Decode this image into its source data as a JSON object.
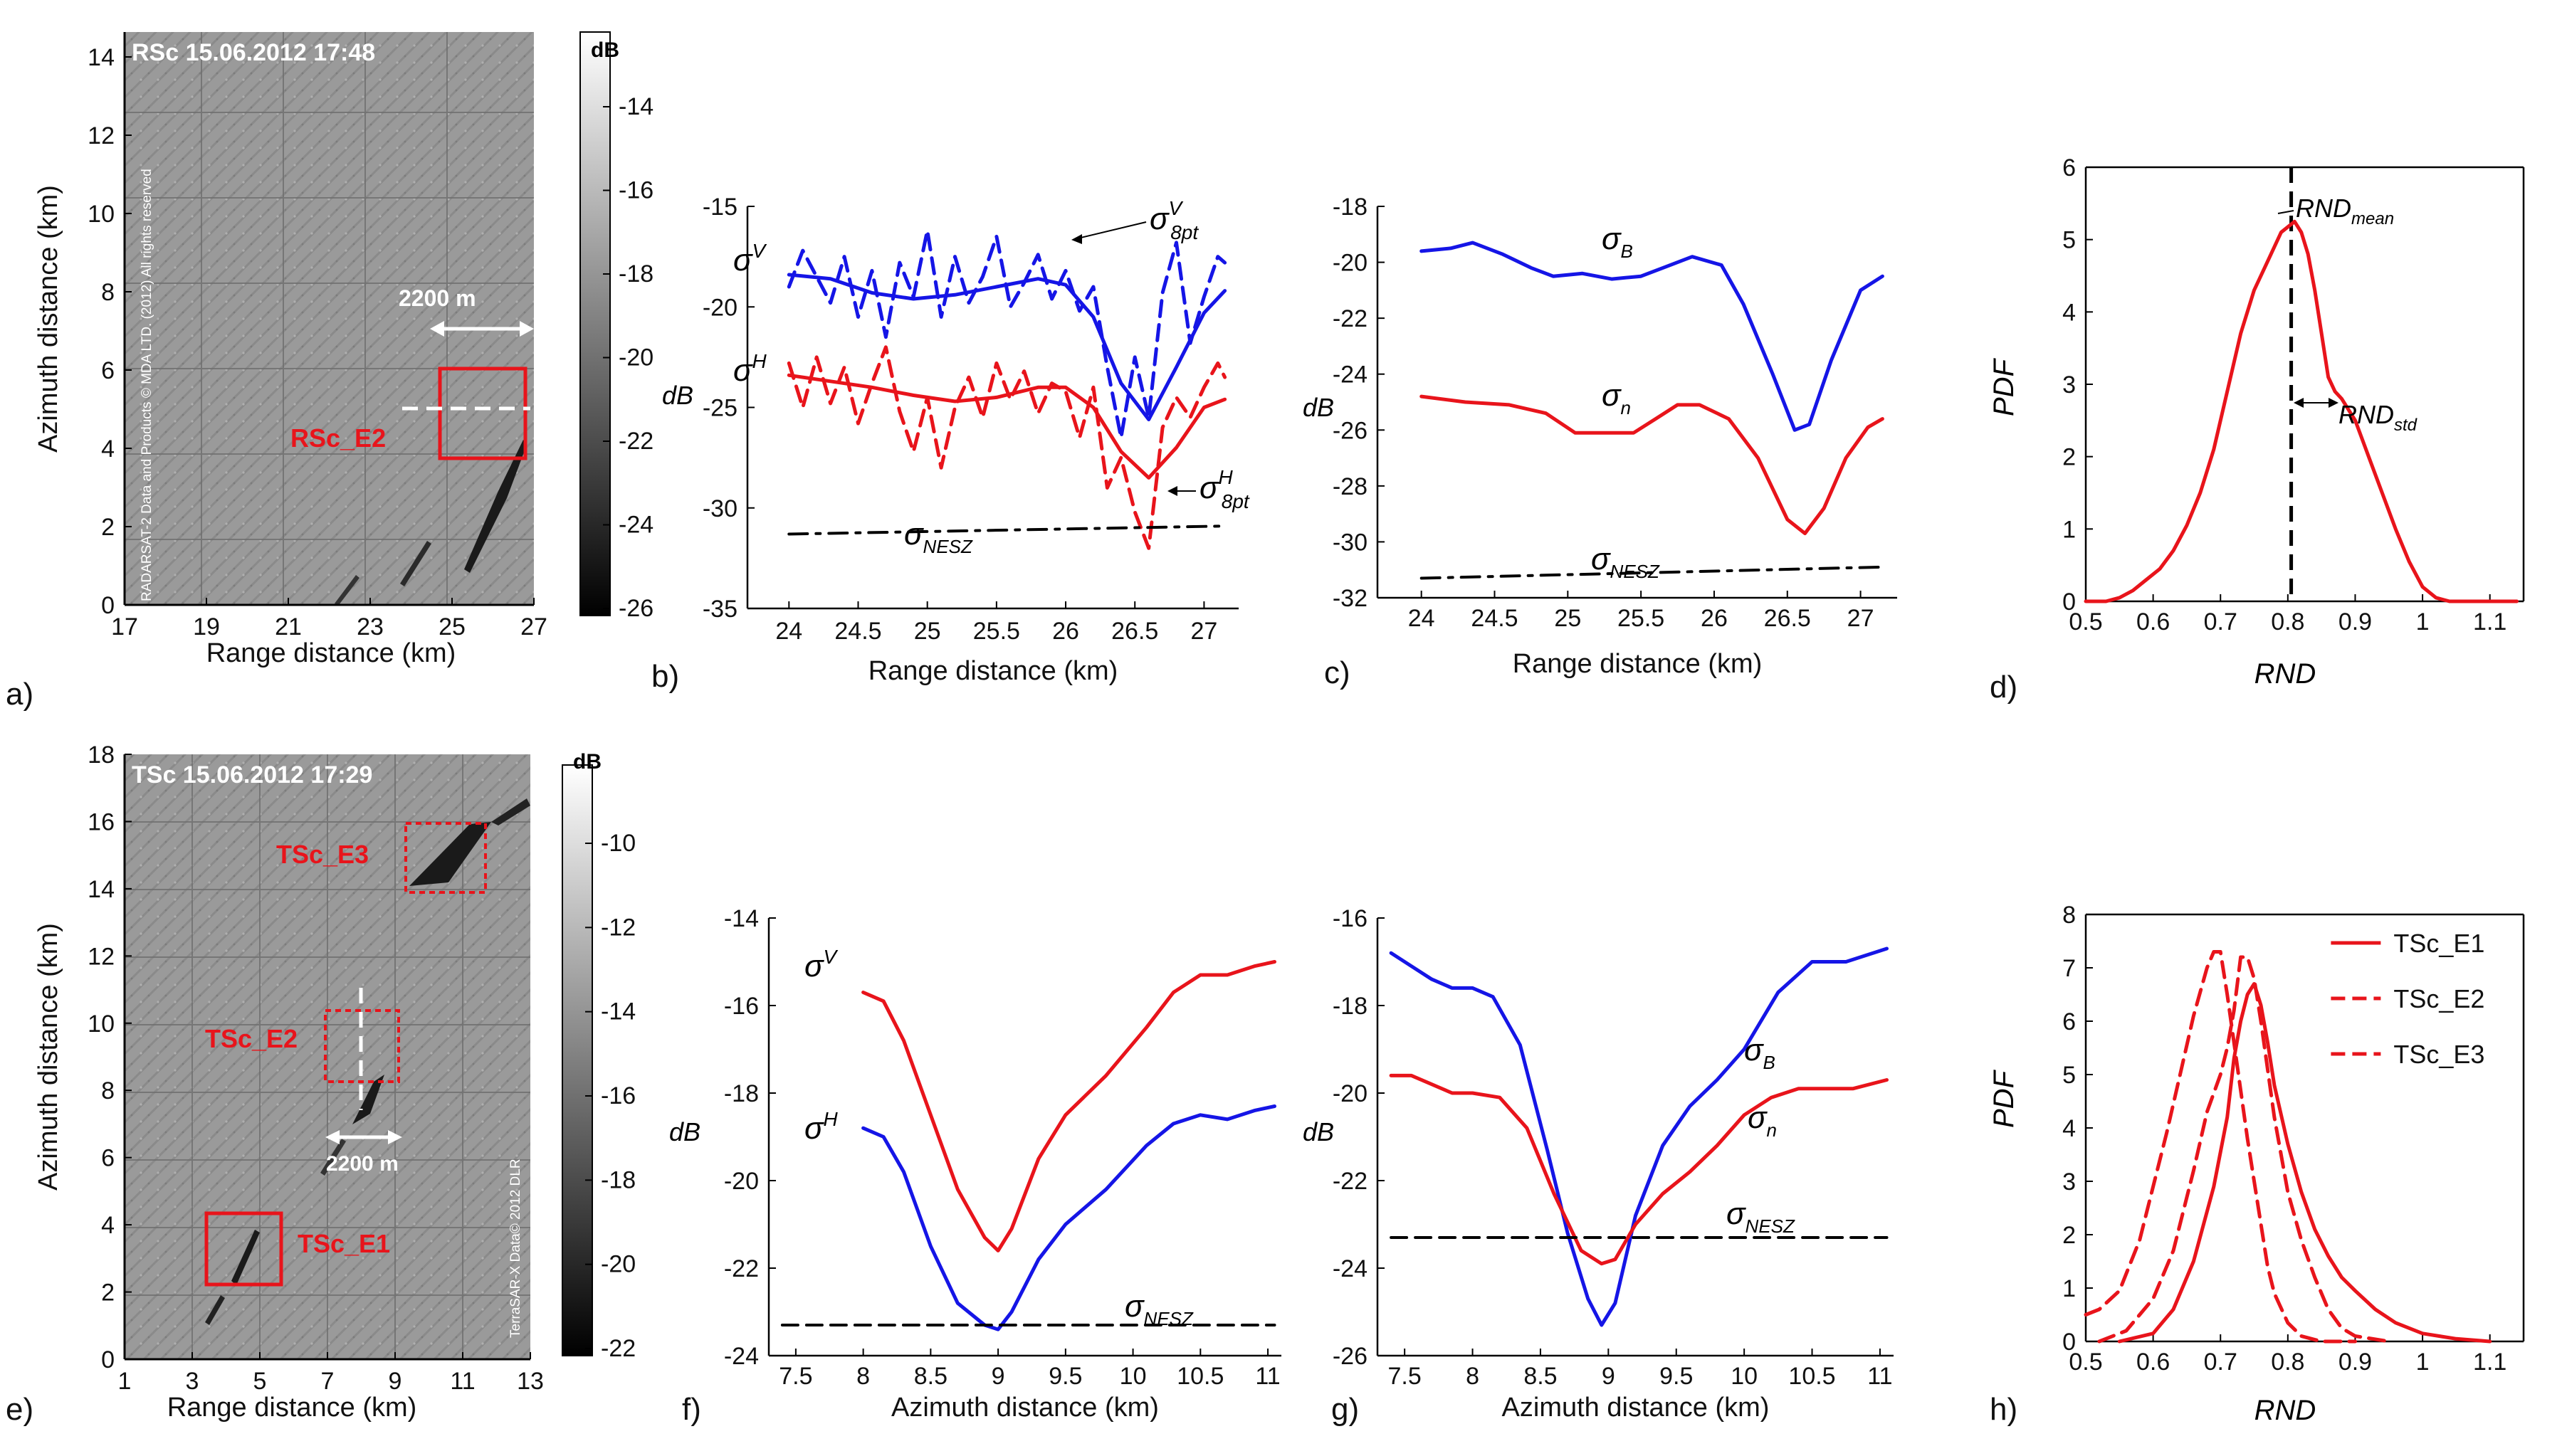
{
  "colors": {
    "red": "#e8141b",
    "blue": "#1515e6",
    "black": "#000000",
    "white": "#ffffff"
  },
  "panel_labels": [
    "a)",
    "b)",
    "c)",
    "d)",
    "e)",
    "f)",
    "g)",
    "h)"
  ],
  "images": [
    {
      "id": "a",
      "header": "RSc  15.06.2012  17:48",
      "xlabel": "Range distance (km)",
      "ylabel": "Azimuth distance (km)",
      "xticks": [
        "17",
        "19",
        "21",
        "23",
        "25",
        "27"
      ],
      "yticks": [
        "0",
        "2",
        "4",
        "6",
        "8",
        "10",
        "12",
        "14"
      ],
      "colorbar_unit": "dB",
      "colorbar_ticks": [
        "-14",
        "-16",
        "-18",
        "-20",
        "-22",
        "-24",
        "-26"
      ],
      "box_labels": [
        "RSc_E2"
      ],
      "distance_label": "2200 m",
      "copyright": "RADARSAT-2 Data and Products © MDA LTD. (2012) All rights reserved"
    },
    {
      "id": "e",
      "header": "TSc  15.06.2012  17:29",
      "xlabel": "Range distance (km)",
      "ylabel": "Azimuth distance (km)",
      "xticks": [
        "1",
        "3",
        "5",
        "7",
        "9",
        "11",
        "13"
      ],
      "yticks": [
        "0",
        "2",
        "4",
        "6",
        "8",
        "10",
        "12",
        "14",
        "16",
        "18"
      ],
      "colorbar_unit": "dB",
      "colorbar_ticks": [
        "-10",
        "-12",
        "-14",
        "-16",
        "-18",
        "-20",
        "-22"
      ],
      "box_labels": [
        "TSc_E3",
        "TSc_E2",
        "TSc_E1"
      ],
      "distance_label": "2200 m",
      "copyright": "TerraSAR-X Data© 2012 DLR"
    }
  ],
  "chart_data": [
    {
      "panel": "b",
      "type": "line",
      "xlabel": "Range distance (km)",
      "ylabel": "dB",
      "xlim": [
        23.7,
        27.25
      ],
      "ylim": [
        -35,
        -15
      ],
      "xticks": [
        "24",
        "24.5",
        "25",
        "25.5",
        "26",
        "26.5",
        "27"
      ],
      "yticks": [
        "-15",
        "-20",
        "-25",
        "-30",
        "-35"
      ],
      "annotations": [
        "σ^V",
        "σ^H",
        "σ^V_8pt",
        "σ^H_8pt",
        "σ_NESZ"
      ],
      "series": [
        {
          "name": "σ^V",
          "style": "solid",
          "color": "#1515e6",
          "x": [
            24.0,
            24.3,
            24.6,
            24.9,
            25.2,
            25.5,
            25.8,
            26.0,
            26.2,
            26.4,
            26.6,
            26.8,
            27.0,
            27.15
          ],
          "y": [
            -18.4,
            -18.6,
            -19.3,
            -19.6,
            -19.4,
            -19.0,
            -18.6,
            -18.9,
            -20.5,
            -23.8,
            -25.6,
            -23.0,
            -20.3,
            -19.2
          ]
        },
        {
          "name": "σ^V_8pt",
          "style": "dashed",
          "color": "#1515e6",
          "x": [
            24.0,
            24.1,
            24.2,
            24.3,
            24.4,
            24.5,
            24.6,
            24.7,
            24.8,
            24.9,
            25.0,
            25.1,
            25.2,
            25.3,
            25.4,
            25.5,
            25.6,
            25.7,
            25.8,
            25.9,
            26.0,
            26.1,
            26.2,
            26.3,
            26.4,
            26.5,
            26.6,
            26.7,
            26.8,
            26.9,
            27.0,
            27.1,
            27.15
          ],
          "y": [
            -19,
            -17.2,
            -18.5,
            -19.8,
            -17.5,
            -20.5,
            -18.2,
            -21.5,
            -17.8,
            -19.5,
            -16.2,
            -20.5,
            -17.5,
            -19.8,
            -18.5,
            -16.5,
            -20.0,
            -18.8,
            -17.4,
            -19.6,
            -18.2,
            -20.2,
            -19.0,
            -23.0,
            -26.5,
            -22.5,
            -25.5,
            -19.3,
            -16.8,
            -21.8,
            -19.5,
            -17.5,
            -17.8
          ]
        },
        {
          "name": "σ^H",
          "style": "solid",
          "color": "#e8141b",
          "x": [
            24.0,
            24.3,
            24.6,
            24.9,
            25.2,
            25.5,
            25.8,
            26.0,
            26.2,
            26.4,
            26.6,
            26.8,
            27.0,
            27.15
          ],
          "y": [
            -23.4,
            -23.7,
            -24.0,
            -24.4,
            -24.7,
            -24.5,
            -24.0,
            -24.0,
            -25.0,
            -27.2,
            -28.5,
            -27.0,
            -25.0,
            -24.6
          ]
        },
        {
          "name": "σ^H_8pt",
          "style": "dashed",
          "color": "#e8141b",
          "x": [
            24.0,
            24.1,
            24.2,
            24.3,
            24.4,
            24.5,
            24.6,
            24.7,
            24.8,
            24.9,
            25.0,
            25.1,
            25.2,
            25.3,
            25.4,
            25.5,
            25.6,
            25.7,
            25.8,
            25.9,
            26.0,
            26.1,
            26.2,
            26.3,
            26.4,
            26.5,
            26.6,
            26.7,
            26.8,
            26.9,
            27.0,
            27.1,
            27.15
          ],
          "y": [
            -22.8,
            -25.0,
            -22.5,
            -24.8,
            -23.0,
            -25.8,
            -23.8,
            -22.0,
            -25.2,
            -27.2,
            -24.5,
            -28.0,
            -25.0,
            -23.5,
            -25.5,
            -22.8,
            -24.6,
            -23.2,
            -25.3,
            -23.8,
            -24.2,
            -26.5,
            -24.0,
            -29.0,
            -27.5,
            -30.2,
            -32.0,
            -26.0,
            -24.5,
            -25.5,
            -24.0,
            -22.8,
            -23.5
          ]
        },
        {
          "name": "σ_NESZ",
          "style": "dashdot",
          "color": "#000000",
          "x": [
            24.0,
            27.15
          ],
          "y": [
            -31.3,
            -30.9
          ]
        }
      ]
    },
    {
      "panel": "c",
      "type": "line",
      "xlabel": "Range distance (km)",
      "ylabel": "dB",
      "xlim": [
        23.7,
        27.25
      ],
      "ylim": [
        -32,
        -18
      ],
      "xticks": [
        "24",
        "24.5",
        "25",
        "25.5",
        "26",
        "26.5",
        "27"
      ],
      "yticks": [
        "-18",
        "-20",
        "-22",
        "-24",
        "-26",
        "-28",
        "-30",
        "-32"
      ],
      "annotations": [
        "σ_B",
        "σ_n",
        "σ_NESZ"
      ],
      "series": [
        {
          "name": "σ_B",
          "style": "solid",
          "color": "#1515e6",
          "x": [
            24.0,
            24.2,
            24.35,
            24.55,
            24.75,
            24.9,
            25.1,
            25.3,
            25.5,
            25.65,
            25.85,
            26.05,
            26.2,
            26.4,
            26.55,
            26.65,
            26.8,
            27.0,
            27.15
          ],
          "y": [
            -19.6,
            -19.5,
            -19.3,
            -19.7,
            -20.2,
            -20.5,
            -20.4,
            -20.6,
            -20.5,
            -20.2,
            -19.8,
            -20.1,
            -21.5,
            -24.0,
            -26.0,
            -25.8,
            -23.5,
            -21.0,
            -20.5
          ]
        },
        {
          "name": "σ_n",
          "style": "solid",
          "color": "#e8141b",
          "x": [
            24.0,
            24.3,
            24.6,
            24.85,
            25.05,
            25.25,
            25.45,
            25.6,
            25.75,
            25.9,
            26.1,
            26.3,
            26.5,
            26.62,
            26.75,
            26.9,
            27.05,
            27.15
          ],
          "y": [
            -24.8,
            -25.0,
            -25.1,
            -25.4,
            -26.1,
            -26.1,
            -26.1,
            -25.6,
            -25.1,
            -25.1,
            -25.6,
            -27.0,
            -29.2,
            -29.7,
            -28.8,
            -27.0,
            -25.9,
            -25.6
          ]
        },
        {
          "name": "σ_NESZ",
          "style": "dashdot",
          "color": "#000000",
          "x": [
            24.0,
            27.15
          ],
          "y": [
            -31.3,
            -30.9
          ]
        }
      ]
    },
    {
      "panel": "d",
      "type": "line",
      "xlabel": "RND",
      "ylabel": "PDF",
      "xlim": [
        0.5,
        1.15
      ],
      "ylim": [
        0,
        6
      ],
      "xticks": [
        "0.5",
        "0.6",
        "0.7",
        "0.8",
        "0.9",
        "1",
        "1.1"
      ],
      "yticks": [
        "0",
        "1",
        "2",
        "3",
        "4",
        "5",
        "6"
      ],
      "annotations": [
        "RND_mean",
        "RND_std"
      ],
      "vline": {
        "x": 0.805,
        "style": "dashed"
      },
      "series": [
        {
          "name": "",
          "style": "solid",
          "color": "#e8141b",
          "x": [
            0.5,
            0.53,
            0.55,
            0.57,
            0.59,
            0.61,
            0.63,
            0.65,
            0.67,
            0.69,
            0.71,
            0.73,
            0.75,
            0.77,
            0.79,
            0.81,
            0.82,
            0.83,
            0.84,
            0.85,
            0.86,
            0.87,
            0.88,
            0.9,
            0.92,
            0.94,
            0.96,
            0.98,
            1.0,
            1.02,
            1.04,
            1.07,
            1.1,
            1.14
          ],
          "y": [
            0,
            0,
            0.05,
            0.15,
            0.3,
            0.45,
            0.7,
            1.05,
            1.5,
            2.1,
            2.9,
            3.7,
            4.3,
            4.7,
            5.1,
            5.25,
            5.1,
            4.8,
            4.3,
            3.7,
            3.1,
            2.9,
            2.8,
            2.5,
            2.0,
            1.5,
            1.0,
            0.55,
            0.2,
            0.05,
            0,
            0,
            0,
            0
          ]
        }
      ]
    },
    {
      "panel": "f",
      "type": "line",
      "xlabel": "Azimuth distance (km)",
      "ylabel": "dB",
      "xlim": [
        7.3,
        11.1
      ],
      "ylim": [
        -24,
        -14
      ],
      "xticks": [
        "7.5",
        "8",
        "8.5",
        "9",
        "9.5",
        "10",
        "10.5",
        "11"
      ],
      "yticks": [
        "-14",
        "-16",
        "-18",
        "-20",
        "-22",
        "-24"
      ],
      "annotations": [
        "σ^V",
        "σ^H",
        "σ_NESZ"
      ],
      "series": [
        {
          "name": "σ^V",
          "style": "solid",
          "color": "#e8141b",
          "x": [
            8.0,
            8.15,
            8.3,
            8.5,
            8.7,
            8.9,
            9.0,
            9.1,
            9.3,
            9.5,
            9.8,
            10.1,
            10.3,
            10.5,
            10.7,
            10.9,
            11.05
          ],
          "y": [
            -15.7,
            -15.9,
            -16.8,
            -18.5,
            -20.2,
            -21.3,
            -21.6,
            -21.1,
            -19.5,
            -18.5,
            -17.6,
            -16.5,
            -15.7,
            -15.3,
            -15.3,
            -15.1,
            -15.0
          ]
        },
        {
          "name": "σ^H",
          "style": "solid",
          "color": "#1515e6",
          "x": [
            8.0,
            8.15,
            8.3,
            8.5,
            8.7,
            8.9,
            9.0,
            9.1,
            9.3,
            9.5,
            9.8,
            10.1,
            10.3,
            10.5,
            10.7,
            10.9,
            11.05
          ],
          "y": [
            -18.8,
            -19.0,
            -19.8,
            -21.5,
            -22.8,
            -23.3,
            -23.4,
            -23.0,
            -21.8,
            -21.0,
            -20.2,
            -19.2,
            -18.7,
            -18.5,
            -18.6,
            -18.4,
            -18.3
          ]
        },
        {
          "name": "σ_NESZ",
          "style": "dashed",
          "color": "#000000",
          "x": [
            7.4,
            11.05
          ],
          "y": [
            -23.3,
            -23.3
          ]
        }
      ]
    },
    {
      "panel": "g",
      "type": "line",
      "xlabel": "Azimuth distance (km)",
      "ylabel": "dB",
      "xlim": [
        7.3,
        11.1
      ],
      "ylim": [
        -26,
        -16
      ],
      "xticks": [
        "7.5",
        "8",
        "8.5",
        "9",
        "9.5",
        "10",
        "10.5",
        "11"
      ],
      "yticks": [
        "-16",
        "-18",
        "-20",
        "-22",
        "-24",
        "-26"
      ],
      "annotations": [
        "σ_B",
        "σ_n",
        "σ_NESZ"
      ],
      "series": [
        {
          "name": "σ_B",
          "style": "solid",
          "color": "#1515e6",
          "x": [
            7.4,
            7.55,
            7.7,
            7.85,
            8.0,
            8.15,
            8.35,
            8.55,
            8.7,
            8.85,
            8.95,
            9.05,
            9.2,
            9.4,
            9.6,
            9.8,
            10.0,
            10.25,
            10.5,
            10.75,
            11.05
          ],
          "y": [
            -16.8,
            -17.1,
            -17.4,
            -17.6,
            -17.6,
            -17.8,
            -18.9,
            -21.3,
            -23.2,
            -24.7,
            -25.3,
            -24.8,
            -22.8,
            -21.2,
            -20.3,
            -19.7,
            -19.0,
            -17.7,
            -17.0,
            -17.0,
            -16.7
          ]
        },
        {
          "name": "σ_n",
          "style": "solid",
          "color": "#e8141b",
          "x": [
            7.4,
            7.55,
            7.7,
            7.85,
            8.0,
            8.2,
            8.4,
            8.6,
            8.8,
            8.95,
            9.05,
            9.2,
            9.4,
            9.6,
            9.8,
            10.0,
            10.2,
            10.4,
            10.6,
            10.8,
            11.05
          ],
          "y": [
            -19.6,
            -19.6,
            -19.8,
            -20.0,
            -20.0,
            -20.1,
            -20.8,
            -22.3,
            -23.6,
            -23.9,
            -23.8,
            -23.0,
            -22.3,
            -21.8,
            -21.2,
            -20.5,
            -20.1,
            -19.9,
            -19.9,
            -19.9,
            -19.7
          ]
        },
        {
          "name": "σ_NESZ",
          "style": "dashed",
          "color": "#000000",
          "x": [
            7.4,
            11.05
          ],
          "y": [
            -23.3,
            -23.3
          ]
        }
      ]
    },
    {
      "panel": "h",
      "type": "line",
      "xlabel": "RND",
      "ylabel": "PDF",
      "xlim": [
        0.5,
        1.15
      ],
      "ylim": [
        0,
        8
      ],
      "xticks": [
        "0.5",
        "0.6",
        "0.7",
        "0.8",
        "0.9",
        "1",
        "1.1"
      ],
      "yticks": [
        "0",
        "1",
        "2",
        "3",
        "4",
        "5",
        "6",
        "7",
        "8"
      ],
      "legend_position": "top-right",
      "series": [
        {
          "name": "TSc_E1",
          "style": "solid",
          "color": "#e8141b",
          "x": [
            0.55,
            0.6,
            0.63,
            0.66,
            0.69,
            0.71,
            0.72,
            0.73,
            0.74,
            0.75,
            0.76,
            0.77,
            0.78,
            0.8,
            0.82,
            0.84,
            0.86,
            0.88,
            0.9,
            0.93,
            0.96,
            1.0,
            1.05,
            1.1
          ],
          "y": [
            0,
            0.15,
            0.6,
            1.5,
            2.9,
            4.2,
            5.3,
            6.0,
            6.5,
            6.7,
            6.3,
            5.6,
            4.8,
            3.7,
            2.8,
            2.1,
            1.6,
            1.2,
            0.95,
            0.6,
            0.35,
            0.15,
            0.05,
            0
          ]
        },
        {
          "name": "TSc_E2",
          "style": "dashed",
          "color": "#e8141b",
          "x": [
            0.5,
            0.52,
            0.55,
            0.58,
            0.6,
            0.62,
            0.64,
            0.66,
            0.68,
            0.69,
            0.7,
            0.71,
            0.72,
            0.74,
            0.76,
            0.77,
            0.78,
            0.8,
            0.82,
            0.85,
            0.9
          ],
          "y": [
            0.5,
            0.6,
            0.95,
            1.9,
            2.9,
            3.9,
            5.0,
            6.1,
            7.0,
            7.3,
            7.3,
            6.5,
            5.6,
            3.8,
            2.2,
            1.4,
            0.9,
            0.35,
            0.1,
            0,
            0
          ]
        },
        {
          "name": "TSc_E3",
          "style": "dashed",
          "color": "#e8141b",
          "x": [
            0.52,
            0.56,
            0.6,
            0.63,
            0.66,
            0.68,
            0.7,
            0.71,
            0.72,
            0.73,
            0.74,
            0.75,
            0.76,
            0.78,
            0.8,
            0.82,
            0.84,
            0.86,
            0.88,
            0.9,
            0.95
          ],
          "y": [
            0,
            0.2,
            0.8,
            1.7,
            3.2,
            4.3,
            5.0,
            5.5,
            6.2,
            7.2,
            7.2,
            6.8,
            6.0,
            4.2,
            2.8,
            1.9,
            1.2,
            0.6,
            0.25,
            0.1,
            0
          ]
        }
      ]
    }
  ]
}
